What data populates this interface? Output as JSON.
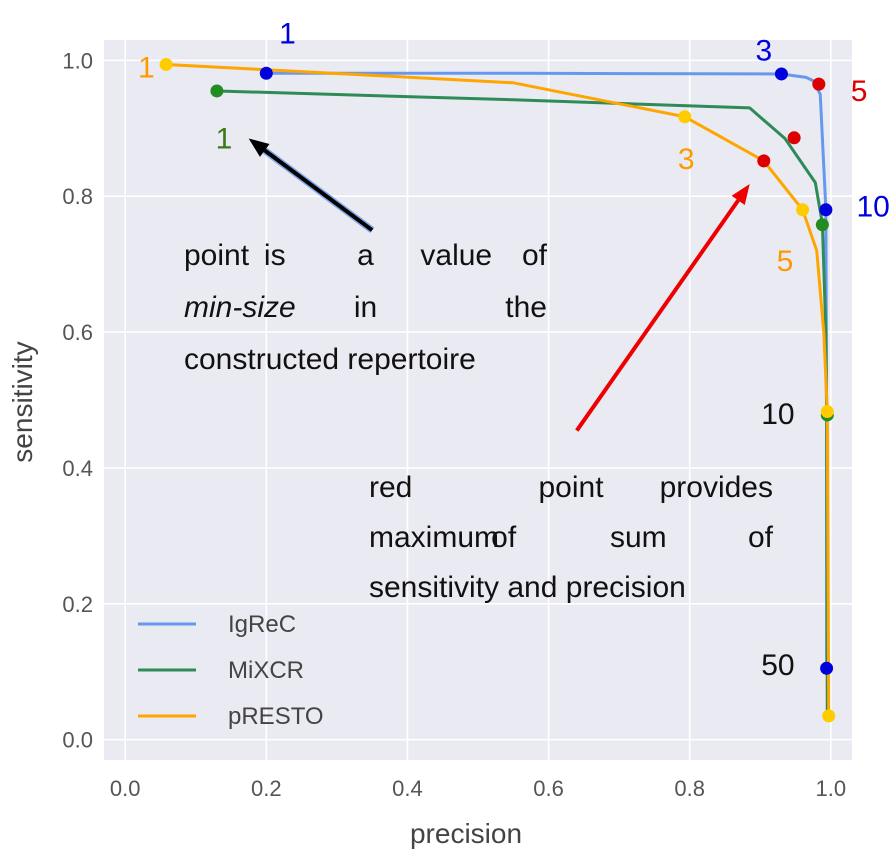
{
  "chart_data": {
    "type": "line",
    "xlabel": "precision",
    "ylabel": "sensitivity",
    "xlim": [
      -0.03,
      1.03
    ],
    "ylim": [
      -0.03,
      1.03
    ],
    "xticks": [
      "0.0",
      "0.2",
      "0.4",
      "0.6",
      "0.8",
      "1.0"
    ],
    "yticks": [
      "0.0",
      "0.2",
      "0.4",
      "0.6",
      "0.8",
      "1.0"
    ],
    "grid": true,
    "legend": "bottom-left",
    "series": [
      {
        "name": "IgReC",
        "color": "#6699ee",
        "x": [
          0.2,
          0.55,
          0.93,
          0.965,
          0.975,
          0.985,
          0.993,
          0.994,
          0.994
        ],
        "y": [
          0.981,
          0.981,
          0.98,
          0.975,
          0.97,
          0.95,
          0.78,
          0.45,
          0.105
        ],
        "markers": [
          {
            "x": 0.2,
            "y": 0.981,
            "color": "#0000dd"
          },
          {
            "x": 0.93,
            "y": 0.98,
            "color": "#0000dd"
          },
          {
            "x": 0.993,
            "y": 0.78,
            "color": "#0000dd"
          },
          {
            "x": 0.994,
            "y": 0.105,
            "color": "#0000dd"
          }
        ]
      },
      {
        "name": "MiXCR",
        "color": "#2e8b57",
        "x": [
          0.13,
          0.55,
          0.885,
          0.935,
          0.978,
          0.988,
          0.993,
          0.994,
          0.995
        ],
        "y": [
          0.955,
          0.942,
          0.93,
          0.885,
          0.82,
          0.76,
          0.6,
          0.478,
          0.035
        ],
        "markers": [
          {
            "x": 0.13,
            "y": 0.955,
            "color": "#228b22"
          },
          {
            "x": 0.948,
            "y": 0.886,
            "color": "#dd0000"
          },
          {
            "x": 0.988,
            "y": 0.758,
            "color": "#228b22"
          },
          {
            "x": 0.995,
            "y": 0.478,
            "color": "#228b22"
          }
        ]
      },
      {
        "name": "pRESTO",
        "color": "#ffa500",
        "x": [
          0.058,
          0.55,
          0.793,
          0.905,
          0.96,
          0.98,
          0.99,
          0.995,
          0.997
        ],
        "y": [
          0.994,
          0.967,
          0.917,
          0.852,
          0.78,
          0.72,
          0.6,
          0.483,
          0.035
        ],
        "markers": [
          {
            "x": 0.058,
            "y": 0.994,
            "color": "#ffcc00"
          },
          {
            "x": 0.793,
            "y": 0.917,
            "color": "#ffcc00"
          },
          {
            "x": 0.905,
            "y": 0.852,
            "color": "#dd0000"
          },
          {
            "x": 0.96,
            "y": 0.78,
            "color": "#ffcc00"
          },
          {
            "x": 0.995,
            "y": 0.483,
            "color": "#ffcc00"
          },
          {
            "x": 0.997,
            "y": 0.035,
            "color": "#ffcc00"
          }
        ]
      }
    ],
    "extra_markers": [
      {
        "x": 0.983,
        "y": 0.965,
        "color": "#dd0000"
      }
    ],
    "point_labels": [
      {
        "text": "1",
        "color": "#0000dd",
        "x": 0.23,
        "y": 1.025
      },
      {
        "text": "1",
        "color": "#ff9900",
        "x": 0.03,
        "y": 0.975
      },
      {
        "text": "1",
        "color": "#3a7a1a",
        "x": 0.14,
        "y": 0.87
      },
      {
        "text": "3",
        "color": "#0000dd",
        "x": 0.905,
        "y": 1.0
      },
      {
        "text": "3",
        "color": "#ff9900",
        "x": 0.795,
        "y": 0.84
      },
      {
        "text": "5",
        "color": "#dd0000",
        "x": 1.04,
        "y": 0.94
      },
      {
        "text": "5",
        "color": "#ff9900",
        "x": 0.935,
        "y": 0.69
      },
      {
        "text": "10",
        "color": "#0000dd",
        "x": 1.06,
        "y": 0.77
      },
      {
        "text": "10",
        "color": "#111111",
        "x": 0.925,
        "y": 0.465
      },
      {
        "text": "50",
        "color": "#111111",
        "x": 0.925,
        "y": 0.095
      }
    ],
    "annotations": [
      {
        "id": "black",
        "color": "#000000",
        "arrow_from": [
          0.35,
          0.75
        ],
        "arrow_to": [
          0.175,
          0.885
        ],
        "lines": [
          [
            {
              "text": "point"
            },
            {
              "text": "is"
            },
            {
              "text": "a"
            },
            {
              "text": "value"
            },
            {
              "text": "of"
            }
          ],
          [
            {
              "text": "min-size",
              "italic": true
            },
            {
              "text": "in"
            },
            {
              "text": "the"
            }
          ],
          [
            {
              "text": "constructed repertoire"
            }
          ]
        ]
      },
      {
        "id": "red",
        "color": "#ee0000",
        "arrow_from": [
          0.64,
          0.455
        ],
        "arrow_to": [
          0.885,
          0.818
        ],
        "lines": [
          [
            {
              "text": "red",
              "color": "#ee0000"
            },
            {
              "text": "point",
              "color": "#ee0000"
            },
            {
              "text": "provides"
            }
          ],
          [
            {
              "text": "maximum"
            },
            {
              "text": "of"
            },
            {
              "text": "sum"
            },
            {
              "text": "of"
            }
          ],
          [
            {
              "text": "sensitivity and precision"
            }
          ]
        ]
      }
    ]
  }
}
